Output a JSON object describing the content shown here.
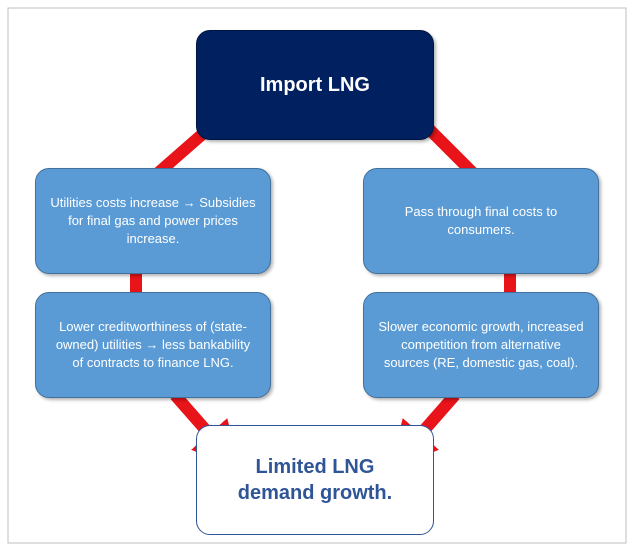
{
  "nodes": [
    {
      "label": "Import LNG"
    },
    {
      "label": "Utilities costs increase → Subsidies for final gas and power prices increase."
    },
    {
      "label": "Pass through final costs to consumers."
    },
    {
      "label": "Lower creditworthiness of (state-owned) utilities → less bankability of contracts to finance LNG."
    },
    {
      "label": "Slower economic growth, increased competition from alternative sources (RE, domestic gas, coal)."
    },
    {
      "label": "Limited LNG demand growth."
    }
  ]
}
